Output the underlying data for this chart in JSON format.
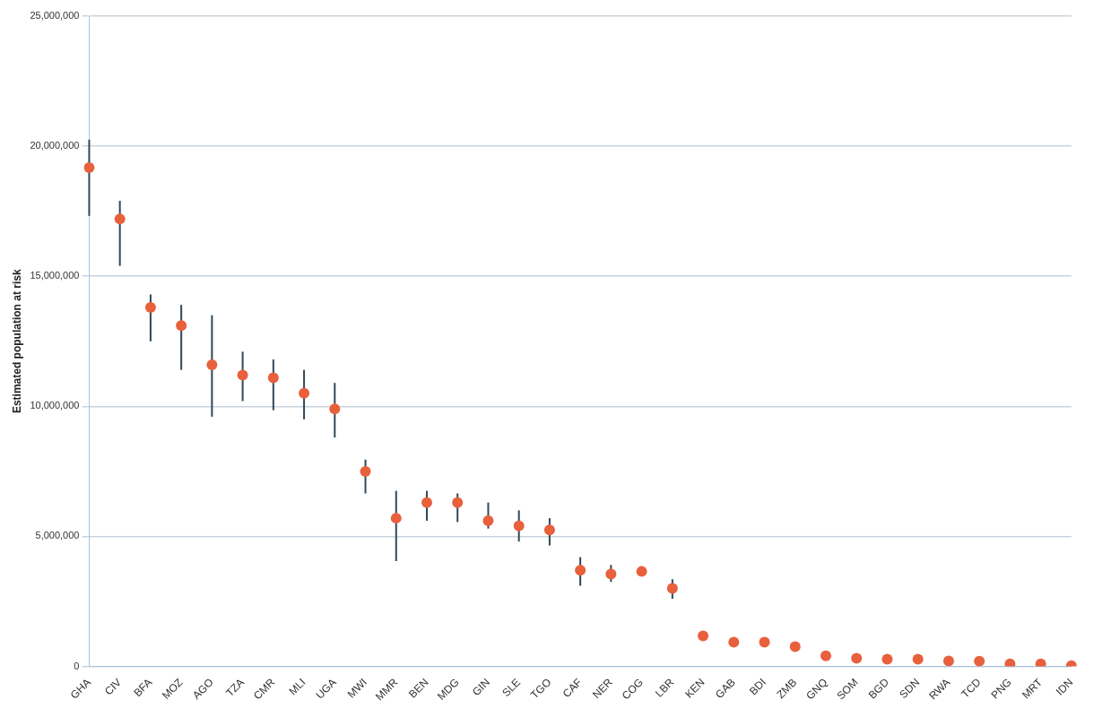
{
  "chart_data": {
    "type": "scatter",
    "ylabel": "Estimated population at risk",
    "categories": [
      "GHA",
      "CIV",
      "BFA",
      "MOZ",
      "AGO",
      "TZA",
      "CMR",
      "MLI",
      "UGA",
      "MWI",
      "MMR",
      "BEN",
      "MDG",
      "GIN",
      "SLE",
      "TGO",
      "CAF",
      "NER",
      "COG",
      "LBR",
      "KEN",
      "GAB",
      "BDI",
      "ZMB",
      "GNQ",
      "SOM",
      "BGD",
      "SDN",
      "RWA",
      "TCD",
      "PNG",
      "MRT",
      "IDN"
    ],
    "series": [
      {
        "color": "#e8603c",
        "values": [
          19180000,
          17200000,
          13800000,
          13100000,
          11600000,
          11200000,
          11100000,
          10500000,
          9900000,
          7500000,
          5700000,
          6300000,
          6300000,
          5600000,
          5400000,
          5250000,
          3700000,
          3550000,
          3650000,
          3000000,
          1170000,
          930000,
          930000,
          760000,
          410000,
          310000,
          280000,
          280000,
          210000,
          200000,
          100000,
          100000,
          30000
        ],
        "errors": [
          [
            17320000,
            20250000
          ],
          [
            15400000,
            17900000
          ],
          [
            12500000,
            14300000
          ],
          [
            11400000,
            13900000
          ],
          [
            9600000,
            13500000
          ],
          [
            10200000,
            12100000
          ],
          [
            9850000,
            11800000
          ],
          [
            9500000,
            11400000
          ],
          [
            8800000,
            10900000
          ],
          [
            6650000,
            7950000
          ],
          [
            4050000,
            6750000
          ],
          [
            5600000,
            6750000
          ],
          [
            5550000,
            6650000
          ],
          [
            5300000,
            6300000
          ],
          [
            4800000,
            6000000
          ],
          [
            4650000,
            5700000
          ],
          [
            3100000,
            4200000
          ],
          [
            3250000,
            3900000
          ],
          null,
          [
            2600000,
            3350000
          ],
          null,
          null,
          null,
          null,
          null,
          null,
          null,
          null,
          null,
          null,
          null,
          null,
          null
        ]
      }
    ],
    "ylim": [
      0,
      25000000
    ],
    "yticks": [
      {
        "value": 0,
        "label": "0"
      },
      {
        "value": 5000000,
        "label": "5,000,000"
      },
      {
        "value": 10000000,
        "label": "10,000,000"
      },
      {
        "value": 15000000,
        "label": "15,000,000"
      },
      {
        "value": 20000000,
        "label": "20,000,000"
      },
      {
        "value": 25000000,
        "label": "25,000,000"
      }
    ],
    "grid": "y",
    "legend": false,
    "marker": "circle"
  }
}
